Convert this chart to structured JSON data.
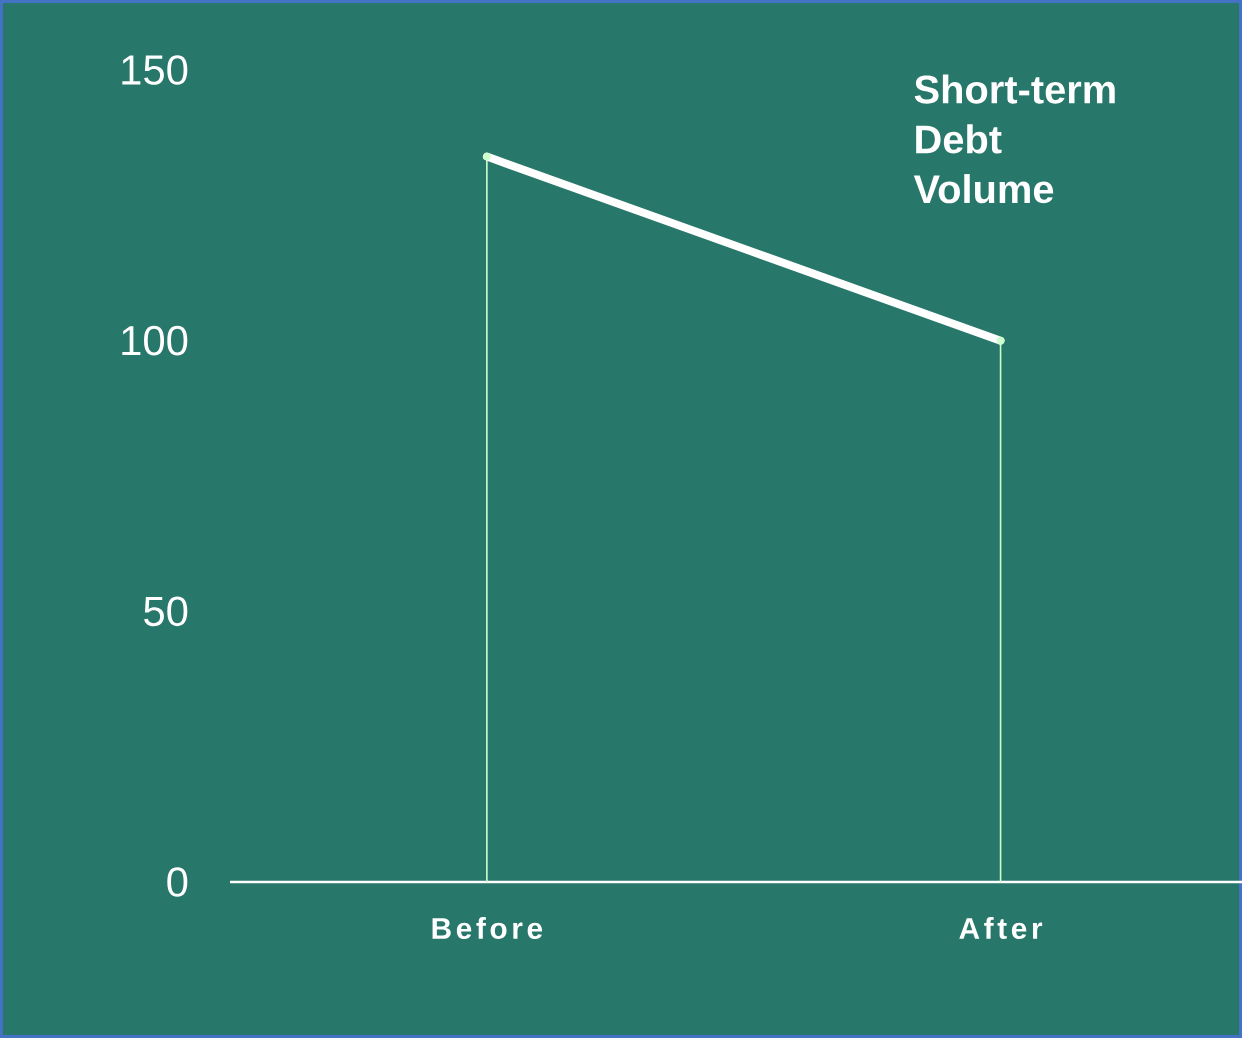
{
  "chart_data": {
    "type": "line",
    "categories": [
      "Before",
      "After"
    ],
    "series": [
      {
        "type": "lollipop",
        "color": "#ccffcc",
        "values": [
          134,
          100
        ]
      },
      {
        "name": "Short-term Debt Volume",
        "color": "#ffffff",
        "values": [
          134,
          100
        ]
      }
    ],
    "ylim": [
      0,
      150
    ],
    "yticks": [
      0,
      50,
      100,
      150
    ],
    "marker": "none",
    "line_style": "solid"
  }
}
